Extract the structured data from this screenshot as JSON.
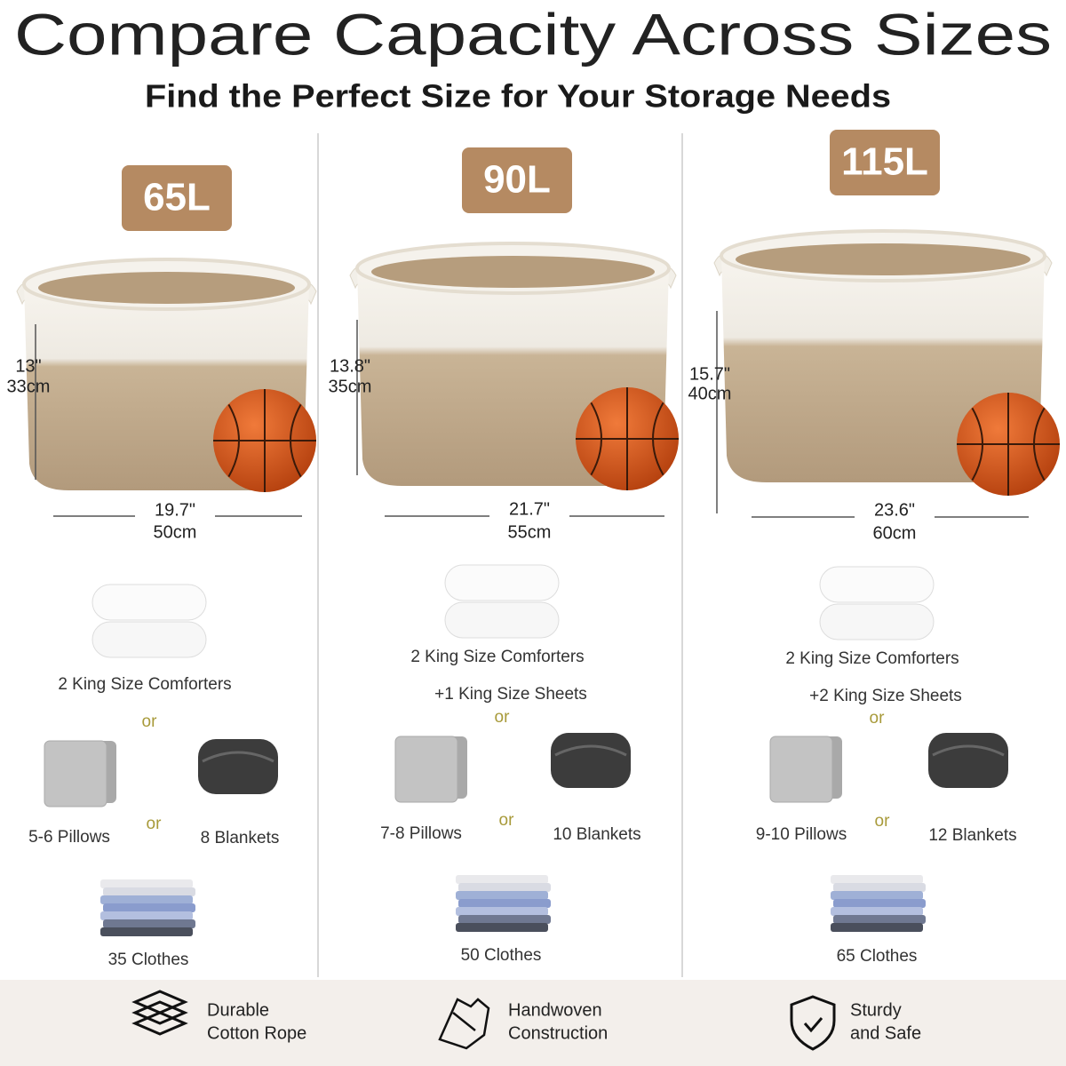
{
  "header": {
    "title": "Compare Capacity Across Sizes",
    "subtitle": "Find the Perfect Size for Your Storage Needs"
  },
  "columns": [
    {
      "capacity": "65L",
      "height_in": "13\"",
      "height_cm": "33cm",
      "width_in": "19.7\"",
      "width_cm": "50cm",
      "comforters": "2 King Size Comforters",
      "or_1": "or",
      "pillows": "5-6 Pillows",
      "or_2": "or",
      "blankets": "8 Blankets",
      "clothes": "35 Clothes"
    },
    {
      "capacity": "90L",
      "height_in": "13.8\"",
      "height_cm": "35cm",
      "width_in": "21.7\"",
      "width_cm": "55cm",
      "comforters": "2 King Size Comforters",
      "sheets": "+1 King Size Sheets",
      "or_1": "or",
      "pillows": "7-8 Pillows",
      "or_2": "or",
      "blankets": "10 Blankets",
      "clothes": "50 Clothes"
    },
    {
      "capacity": "115L",
      "height_in": "15.7\"",
      "height_cm": "40cm",
      "width_in": "23.6\"",
      "width_cm": "60cm",
      "comforters": "2 King Size Comforters",
      "sheets": "+2 King Size Sheets",
      "or_1": "or",
      "pillows": "9-10 Pillows",
      "or_2": "or",
      "blankets": "12 Blankets",
      "clothes": "65 Clothes"
    }
  ],
  "features": [
    {
      "line_1": "Durable",
      "line_2": "Cotton Rope"
    },
    {
      "line_1": "Handwoven",
      "line_2": "Construction"
    },
    {
      "line_1": "Sturdy",
      "line_2": "and Safe"
    }
  ]
}
